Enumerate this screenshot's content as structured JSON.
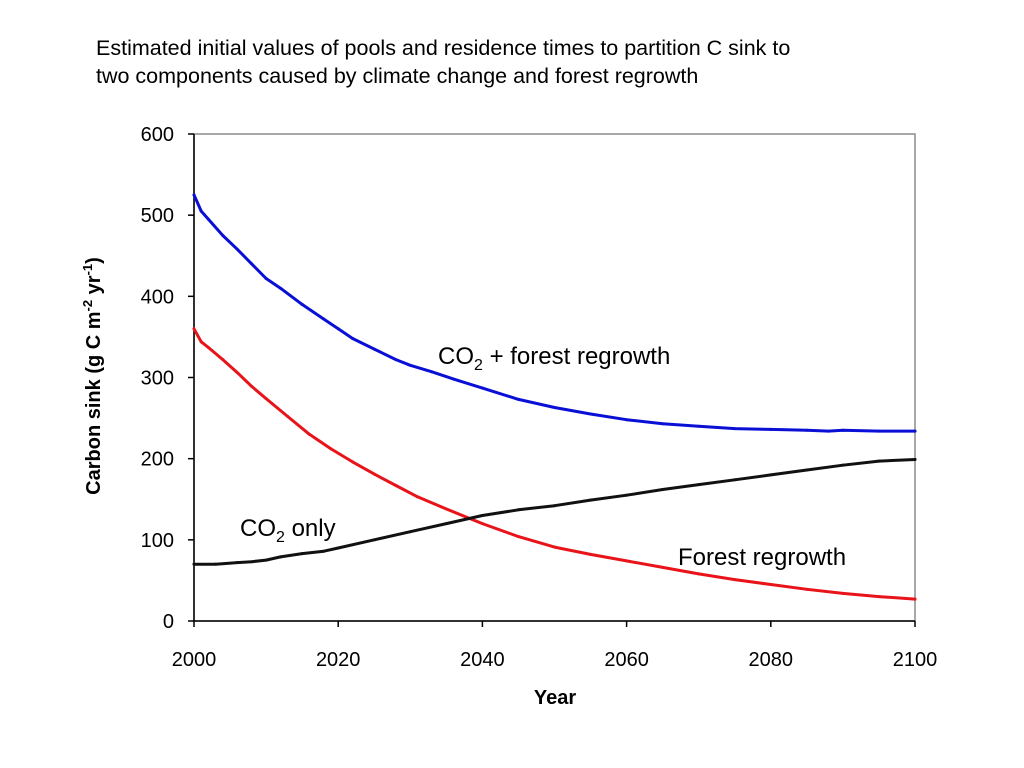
{
  "chart_data": {
    "type": "line",
    "title_lines": [
      "Estimated initial values of pools and residence times to partition C sink to",
      "two components caused by climate change and forest regrowth"
    ],
    "xlabel": "Year",
    "ylabel": {
      "main": "Carbon sink (g C m",
      "sup1": "-2",
      "mid": " yr",
      "sup2": "-1",
      "end": ")"
    },
    "xlim": [
      2000,
      2100
    ],
    "ylim": [
      0,
      600
    ],
    "x_ticks": [
      2000,
      2020,
      2040,
      2060,
      2080,
      2100
    ],
    "y_ticks": [
      0,
      100,
      200,
      300,
      400,
      500,
      600
    ],
    "grid": false,
    "legend": "none",
    "series": [
      {
        "key": "co2_forest",
        "color": "#0a0fd6",
        "x": [
          2000,
          2001,
          2002,
          2004,
          2006,
          2008,
          2010,
          2012,
          2015,
          2018,
          2020,
          2022,
          2025,
          2028,
          2030,
          2033,
          2036,
          2040,
          2045,
          2050,
          2055,
          2060,
          2065,
          2070,
          2075,
          2080,
          2085,
          2088,
          2090,
          2095,
          2100
        ],
        "values": [
          525,
          505,
          495,
          475,
          458,
          440,
          422,
          410,
          390,
          372,
          360,
          348,
          335,
          322,
          315,
          307,
          298,
          287,
          273,
          263,
          255,
          248,
          243,
          240,
          237,
          236,
          235,
          234,
          235,
          234,
          234
        ]
      },
      {
        "key": "forest",
        "color": "#e8141a",
        "x": [
          2000,
          2001,
          2002,
          2004,
          2006,
          2008,
          2010,
          2013,
          2016,
          2019,
          2022,
          2025,
          2028,
          2031,
          2035,
          2040,
          2045,
          2050,
          2055,
          2060,
          2065,
          2070,
          2075,
          2080,
          2085,
          2090,
          2095,
          2100
        ],
        "values": [
          360,
          344,
          337,
          322,
          306,
          289,
          274,
          252,
          230,
          212,
          196,
          181,
          167,
          153,
          138,
          120,
          104,
          91,
          82,
          74,
          66,
          58,
          51,
          45,
          39,
          34,
          30,
          27
        ]
      },
      {
        "key": "co2",
        "color": "#111111",
        "x": [
          2000,
          2003,
          2006,
          2008,
          2010,
          2012,
          2015,
          2018,
          2020,
          2025,
          2030,
          2035,
          2040,
          2045,
          2050,
          2055,
          2060,
          2065,
          2070,
          2075,
          2080,
          2085,
          2090,
          2095,
          2100
        ],
        "values": [
          70,
          70,
          72,
          73,
          75,
          79,
          83,
          86,
          90,
          100,
          110,
          120,
          130,
          137,
          142,
          149,
          155,
          162,
          168,
          174,
          180,
          186,
          192,
          197,
          199
        ]
      }
    ],
    "annotations": {
      "co2_forest": {
        "pre": "CO",
        "sub": "2",
        "post": " + forest regrowth"
      },
      "co2": {
        "pre": "CO",
        "sub": "2",
        "post": " only"
      },
      "forest": {
        "text": "Forest regrowth"
      }
    }
  }
}
